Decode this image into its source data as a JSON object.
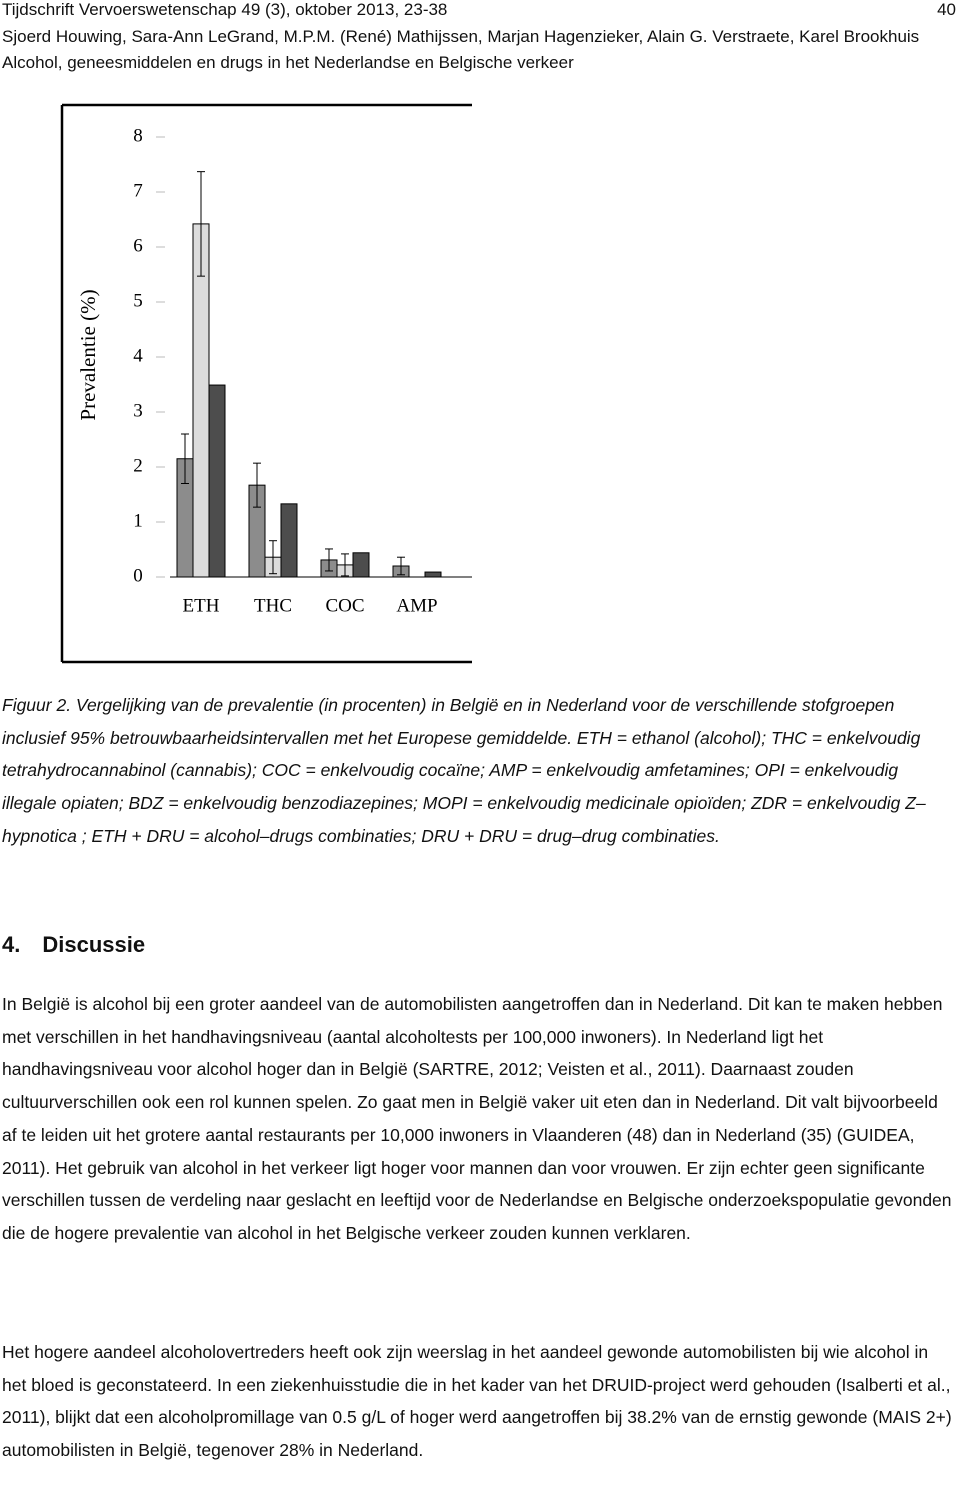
{
  "header": {
    "lines": [
      "Tijdschrift Vervoerswetenschap 49 (3), oktober 2013, 23-38",
      "Sjoerd Houwing, Sara-Ann LeGrand, M.P.M. (René) Mathijssen, Marjan Hagenzieker, Alain G. Verstraete, Karel Brookhuis",
      "Alcohol, geneesmiddelen en drugs in het Nederlandse en Belgische verkeer"
    ],
    "page_number": "40"
  },
  "chart_data": {
    "type": "bar",
    "y_label": "Prevalentie (%)",
    "categories": [
      "ETH",
      "THC",
      "COC",
      "AMP"
    ],
    "series": [
      {
        "color": "#8c8c8c",
        "values": [
          2.15,
          1.67,
          0.31,
          0.2
        ],
        "errors": [
          0.45,
          0.4,
          0.2,
          0.16
        ]
      },
      {
        "color": "#dcdcdc",
        "values": [
          6.42,
          0.36,
          0.22,
          0
        ],
        "errors": [
          0.95,
          0.3,
          0.2,
          null
        ]
      },
      {
        "color": "#4d4d4d",
        "values": [
          3.49,
          1.33,
          0.44,
          0.09
        ]
      }
    ],
    "ylim": [
      0,
      8
    ],
    "yticks": [
      0,
      1,
      2,
      3,
      4,
      5,
      6,
      7,
      8
    ]
  },
  "caption": "Figuur 2. Vergelijking van de prevalentie (in procenten) in België en in Nederland voor de verschillende stofgroepen inclusief 95% betrouwbaarheidsintervallen met het Europese gemiddelde. ETH = ethanol (alcohol); THC = enkelvoudig tetrahydrocannabinol (cannabis); COC = enkelvoudig cocaïne; AMP = enkelvoudig amfetamines; OPI = enkelvoudig illegale opiaten; BDZ = enkelvoudig benzodiazepines; MOPI = enkelvoudig medicinale opioïden; ZDR = enkelvoudig Z–hypnotica ; ETH + DRU = alcohol–drugs combinaties; DRU + DRU = drug–drug combinaties.",
  "section": {
    "heading": "4. Discussie",
    "paragraphs": [
      "In België is alcohol bij een groter aandeel van de automobilisten aangetroffen dan in Nederland. Dit kan te maken hebben met verschillen in het handhavingsniveau (aantal alcoholtests per 100,000 inwoners). In Nederland ligt het handhavingsniveau voor alcohol hoger dan  in België (SARTRE, 2012; Veisten et al., 2011). Daarnaast zouden cultuurverschillen ook een rol kunnen spelen. Zo gaat men in België vaker uit eten dan in Nederland. Dit valt bijvoorbeeld af te leiden uit het grotere aantal restaurants per 10,000 inwoners in Vlaanderen (48) dan in Nederland (35) (GUIDEA, 2011). Het gebruik van alcohol in het verkeer ligt hoger voor mannen dan voor vrouwen. Er zijn echter geen significante verschillen tussen de verdeling naar geslacht en leeftijd voor de Nederlandse en Belgische onderzoekspopulatie gevonden die de hogere prevalentie van alcohol in het Belgische verkeer zouden kunnen verklaren.",
      "Het hogere aandeel alcoholovertreders heeft ook zijn weerslag in het aandeel gewonde automobilisten bij wie alcohol in het bloed is geconstateerd. In een ziekenhuisstudie die in het kader van het DRUID-project werd gehouden (Isalberti et al., 2011), blijkt dat een alcoholpromillage van 0.5 g/L of hoger werd aangetroffen bij 38.2% van de ernstig gewonde (MAIS 2+) automobilisten in België, tegenover 28% in Nederland."
    ]
  }
}
